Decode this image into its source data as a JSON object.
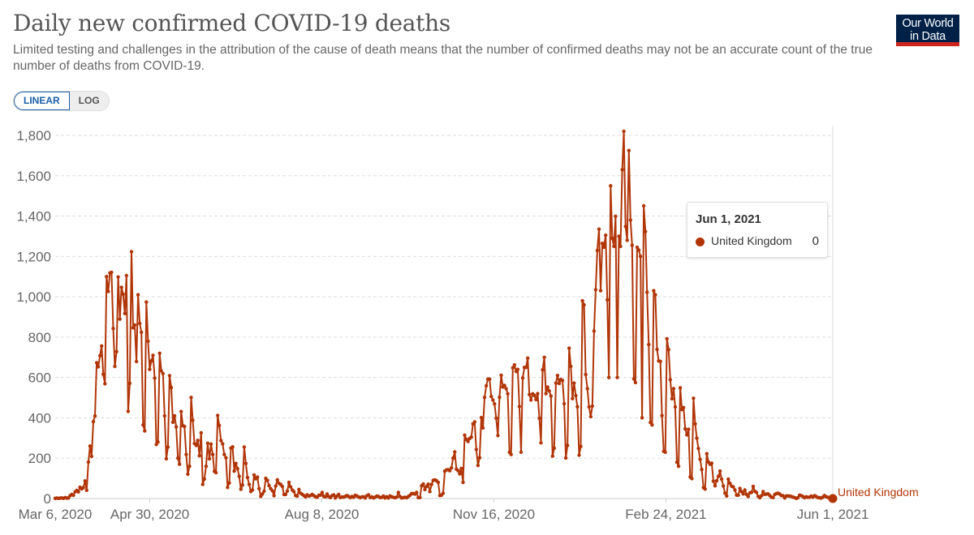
{
  "header": {
    "title": "Daily new confirmed COVID-19 deaths",
    "subtitle": "Limited testing and challenges in the attribution of the cause of death means that the number of confirmed deaths may not be an accurate count of the true number of deaths from COVID-19.",
    "logo_line1": "Our World",
    "logo_line2": "in Data"
  },
  "controls": {
    "scale_options": [
      "LINEAR",
      "LOG"
    ],
    "active_scale": "LINEAR"
  },
  "tooltip": {
    "date": "Jun 1, 2021",
    "entity": "United Kingdom",
    "value": "0"
  },
  "colors": {
    "series": "#b13507",
    "logo_bg": "#002147",
    "logo_accent": "#ce261e",
    "active_toggle": "#1a5fa8"
  },
  "chart_data": {
    "type": "line",
    "title": "Daily new confirmed COVID-19 deaths",
    "xlabel": "",
    "ylabel": "",
    "x_start": "Mar 6, 2020",
    "x_end": "Jun 1, 2021",
    "x_unit": "days since Mar 6, 2020",
    "xlim": [
      0,
      452
    ],
    "ylim": [
      0,
      1800
    ],
    "yticks": [
      0,
      200,
      400,
      600,
      800,
      1000,
      1200,
      1400,
      1600,
      1800
    ],
    "ytick_labels": [
      "0",
      "200",
      "400",
      "600",
      "800",
      "1,000",
      "1,200",
      "1,400",
      "1,600",
      "1,800"
    ],
    "xticks": [
      0,
      55,
      155,
      255,
      355,
      452
    ],
    "xtick_labels": [
      "Mar 6, 2020",
      "Apr 30, 2020",
      "Aug 8, 2020",
      "Nov 16, 2020",
      "Feb 24, 2021",
      "Jun 1, 2021"
    ],
    "grid": "horizontal dashed",
    "legend": "end-of-line label",
    "series": [
      {
        "name": "United Kingdom",
        "values": [
          1,
          2,
          1,
          2,
          3,
          1,
          5,
          2,
          3,
          14,
          20,
          16,
          33,
          40,
          33,
          56,
          48,
          54,
          87,
          41,
          181,
          260,
          209,
          381,
          409,
          673,
          653,
          708,
          756,
          616,
          569,
          1100,
          1026,
          1118,
          1121,
          843,
          655,
          728,
          1098,
          889,
          1047,
          1013,
          917,
          1105,
          432,
          571,
          1224,
          846,
          860,
          679,
          1010,
          868,
          824,
          365,
          335,
          974,
          780,
          640,
          682,
          710,
          597,
          268,
          280,
          720,
          633,
          619,
          410,
          197,
          255,
          609,
          550,
          378,
          410,
          355,
          200,
          170,
          431,
          361,
          357,
          218,
          121,
          160,
          501,
          388,
          273,
          263,
          288,
          212,
          326,
          70,
          97,
          160,
          274,
          197,
          270,
          218,
          135,
          128,
          412,
          362,
          287,
          271,
          218,
          202,
          55,
          77,
          250,
          256,
          136,
          174,
          148,
          110,
          46,
          67,
          255,
          174,
          104,
          70,
          35,
          42,
          117,
          98,
          106,
          49,
          11,
          22,
          36,
          100,
          90,
          64,
          49,
          38,
          14,
          62,
          93,
          75,
          70,
          60,
          20,
          20,
          37,
          80,
          58,
          42,
          34,
          15,
          12,
          45,
          26,
          21,
          15,
          8,
          18,
          12,
          15,
          20,
          14,
          9,
          6,
          16,
          17,
          30,
          11,
          8,
          22,
          10,
          5,
          14,
          18,
          3,
          12,
          20,
          5,
          8,
          7,
          11,
          15,
          10,
          5,
          10,
          6,
          16,
          12,
          8,
          4,
          8,
          9,
          3,
          14,
          18,
          5,
          8,
          3,
          7,
          12,
          10,
          5,
          6,
          12,
          3,
          9,
          3,
          13,
          8,
          6,
          4,
          7,
          30,
          10,
          3,
          5,
          6,
          4,
          10,
          16,
          25,
          24,
          22,
          30,
          5,
          5,
          63,
          72,
          44,
          60,
          71,
          34,
          70,
          90,
          93,
          88,
          80,
          15,
          16,
          26,
          136,
          142,
          143,
          138,
          152,
          200,
          231,
          146,
          138,
          122,
          149,
          80,
          314,
          293,
          283,
          298,
          304,
          370,
          380,
          243,
          164,
          202,
          401,
          350,
          501,
          559,
          592,
          592,
          506,
          488,
          469,
          398,
          312,
          502,
          611,
          553,
          561,
          545,
          519,
          229,
          218,
          648,
          662,
          630,
          640,
          456,
          230,
          598,
          650,
          650,
          696,
          515,
          488,
          519,
          511,
          490,
          520,
          398,
          276,
          638,
          700,
          520,
          552,
          533,
          508,
          210,
          250,
          572,
          610,
          570,
          590,
          585,
          470,
          201,
          263,
          745,
          655,
          495,
          572,
          510,
          455,
          215,
          258,
          980,
          960,
          615,
          545,
          454,
          406,
          458,
          830,
          1035,
          1230,
          1335,
          1030,
          1265,
          1246,
          1305,
          985,
          600,
          1550,
          1290,
          1250,
          1399,
          600,
          1300,
          1250,
          1630,
          1820,
          1348,
          1280,
          1725,
          1380,
          1255,
          593,
          575,
          1245,
          1232,
          1200,
          400,
          1451,
          1323,
          1022,
          763,
          377,
          365,
          1030,
          1010,
          739,
          682,
          680,
          411,
          234,
          230,
          792,
          738,
          589,
          494,
          545,
          454,
          180,
          160,
          549,
          441,
          451,
          345,
          316,
          343,
          107,
          99,
          497,
          370,
          299,
          248,
          194,
          144,
          54,
          47,
          222,
          181,
          170,
          175,
          86,
          63,
          88,
          110,
          136,
          96,
          62,
          27,
          13,
          96,
          75,
          61,
          58,
          42,
          17,
          17,
          50,
          34,
          23,
          42,
          20,
          10,
          28,
          30,
          60,
          36,
          30,
          11,
          4,
          14,
          34,
          20,
          22,
          23,
          15,
          7,
          5,
          20,
          24,
          26,
          22,
          15,
          14,
          3,
          13,
          13,
          12,
          10,
          7,
          5,
          1,
          4,
          17,
          14,
          10,
          4,
          9,
          6,
          7,
          12,
          7,
          14,
          10,
          5,
          4,
          2,
          7,
          15,
          9,
          6,
          3,
          2,
          0
        ]
      }
    ],
    "highlighted_point": {
      "date": "Jun 1, 2021",
      "value": 0
    }
  }
}
